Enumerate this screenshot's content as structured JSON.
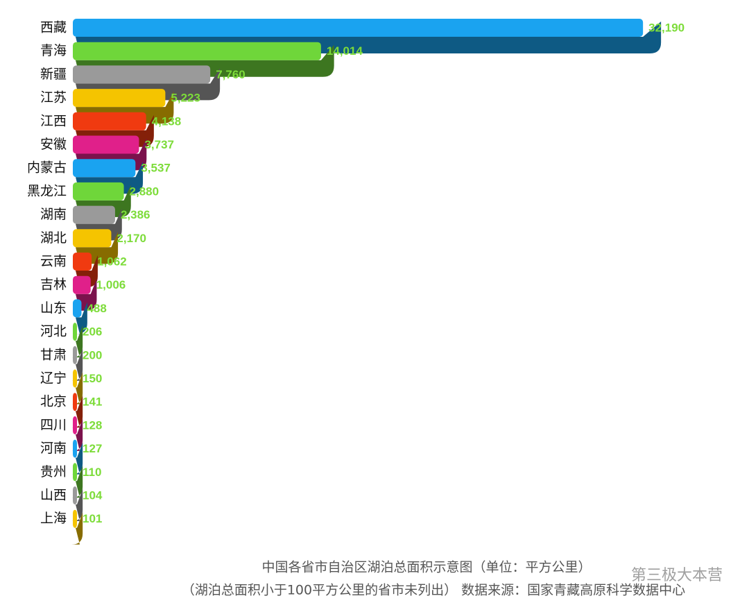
{
  "chart_data": {
    "type": "hbar",
    "categories": [
      "西藏",
      "青海",
      "新疆",
      "江苏",
      "江西",
      "安徽",
      "内蒙古",
      "黑龙江",
      "湖南",
      "湖北",
      "云南",
      "吉林",
      "山东",
      "河北",
      "甘肃",
      "辽宁",
      "北京",
      "四川",
      "河南",
      "贵州",
      "山西",
      "上海"
    ],
    "values": [
      32190,
      14014,
      7760,
      5223,
      4138,
      3737,
      3537,
      2880,
      2386,
      2170,
      1062,
      1006,
      488,
      206,
      200,
      150,
      141,
      128,
      127,
      110,
      104,
      101
    ],
    "value_labels": [
      "32,190",
      "14,014",
      "7,760",
      "5,223",
      "4,138",
      "3,737",
      "3,537",
      "2,880",
      "2,386",
      "2,170",
      "1,062",
      "1,006",
      "488",
      "206",
      "200",
      "150",
      "141",
      "128",
      "127",
      "110",
      "104",
      "101"
    ],
    "colors": [
      "#1aa3f0",
      "#6fd63a",
      "#9a9a9a",
      "#f5c400",
      "#f03a10",
      "#e0208a"
    ],
    "xlim": [
      0,
      37000
    ],
    "title": "中国各省市自治区湖泊总面积示意图（单位：平方公里）",
    "subtitle": "（湖泊总面积小于100平方公里的省市未列出） 数据来源：国家青藏高原科学数据中心",
    "watermark": "第三极大本营"
  }
}
